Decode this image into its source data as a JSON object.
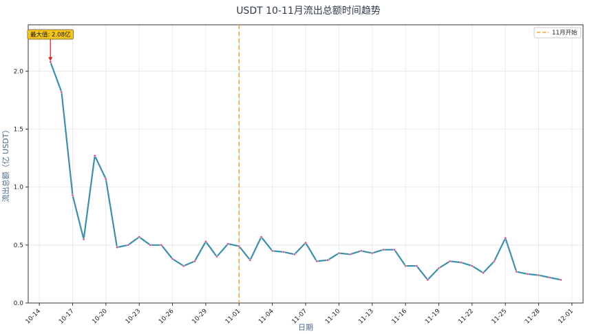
{
  "chart_data": {
    "type": "line",
    "title": "USDT 10-11月流出总额时间趋势",
    "xlabel": "日期",
    "ylabel": "流出总额（亿 USDT）",
    "ylim": [
      0,
      2.4
    ],
    "yticks": [
      "0.0",
      "0.5",
      "1.0",
      "1.5",
      "2.0"
    ],
    "ytick_values": [
      0,
      0.5,
      1.0,
      1.5,
      2.0
    ],
    "xlim": [
      "2023-10-13",
      "2023-12-02"
    ],
    "xtick_dates": [
      "2023-10-14",
      "2023-10-17",
      "2023-10-20",
      "2023-10-23",
      "2023-10-26",
      "2023-10-29",
      "2023-11-01",
      "2023-11-04",
      "2023-11-07",
      "2023-11-10",
      "2023-11-13",
      "2023-11-16",
      "2023-11-19",
      "2023-11-22",
      "2023-11-25",
      "2023-11-28",
      "2023-12-01"
    ],
    "xtick_labels": [
      "10-14",
      "10-17",
      "10-20",
      "10-23",
      "10-26",
      "10-29",
      "11-01",
      "11-04",
      "11-07",
      "11-10",
      "11-13",
      "11-16",
      "11-19",
      "11-22",
      "11-25",
      "11-28",
      "12-01"
    ],
    "grid": true,
    "legend_position": "top-right",
    "series": [
      {
        "name": "",
        "color": "#3a8fad",
        "marker_color": "#e0457b",
        "points": [
          [
            "2023-10-15",
            2.08
          ],
          [
            "2023-10-16",
            1.82
          ],
          [
            "2023-10-17",
            0.93
          ],
          [
            "2023-10-18",
            0.55
          ],
          [
            "2023-10-19",
            1.27
          ],
          [
            "2023-10-20",
            1.07
          ],
          [
            "2023-10-21",
            0.48
          ],
          [
            "2023-10-22",
            0.5
          ],
          [
            "2023-10-23",
            0.57
          ],
          [
            "2023-10-24",
            0.5
          ],
          [
            "2023-10-25",
            0.5
          ],
          [
            "2023-10-26",
            0.38
          ],
          [
            "2023-10-27",
            0.32
          ],
          [
            "2023-10-28",
            0.36
          ],
          [
            "2023-10-29",
            0.53
          ],
          [
            "2023-10-30",
            0.4
          ],
          [
            "2023-10-31",
            0.51
          ],
          [
            "2023-11-01",
            0.49
          ],
          [
            "2023-11-02",
            0.37
          ],
          [
            "2023-11-03",
            0.57
          ],
          [
            "2023-11-04",
            0.45
          ],
          [
            "2023-11-05",
            0.44
          ],
          [
            "2023-11-06",
            0.42
          ],
          [
            "2023-11-07",
            0.52
          ],
          [
            "2023-11-08",
            0.36
          ],
          [
            "2023-11-09",
            0.37
          ],
          [
            "2023-11-10",
            0.43
          ],
          [
            "2023-11-11",
            0.42
          ],
          [
            "2023-11-12",
            0.45
          ],
          [
            "2023-11-13",
            0.43
          ],
          [
            "2023-11-14",
            0.46
          ],
          [
            "2023-11-15",
            0.46
          ],
          [
            "2023-11-16",
            0.32
          ],
          [
            "2023-11-17",
            0.32
          ],
          [
            "2023-11-18",
            0.2
          ],
          [
            "2023-11-19",
            0.3
          ],
          [
            "2023-11-20",
            0.36
          ],
          [
            "2023-11-21",
            0.35
          ],
          [
            "2023-11-22",
            0.32
          ],
          [
            "2023-11-23",
            0.26
          ],
          [
            "2023-11-24",
            0.36
          ],
          [
            "2023-11-25",
            0.56
          ],
          [
            "2023-11-26",
            0.27
          ],
          [
            "2023-11-27",
            0.25
          ],
          [
            "2023-11-28",
            0.24
          ],
          [
            "2023-11-29",
            0.22
          ],
          [
            "2023-11-30",
            0.2
          ]
        ]
      }
    ],
    "vline": {
      "date": "2023-11-01",
      "label": "11月开始",
      "color": "#f0a030"
    },
    "annotation": {
      "text": "最大值: 2.08亿",
      "date": "2023-10-15",
      "value": 2.08,
      "box_color": "#f5c518",
      "arrow_color": "#d62728"
    }
  }
}
